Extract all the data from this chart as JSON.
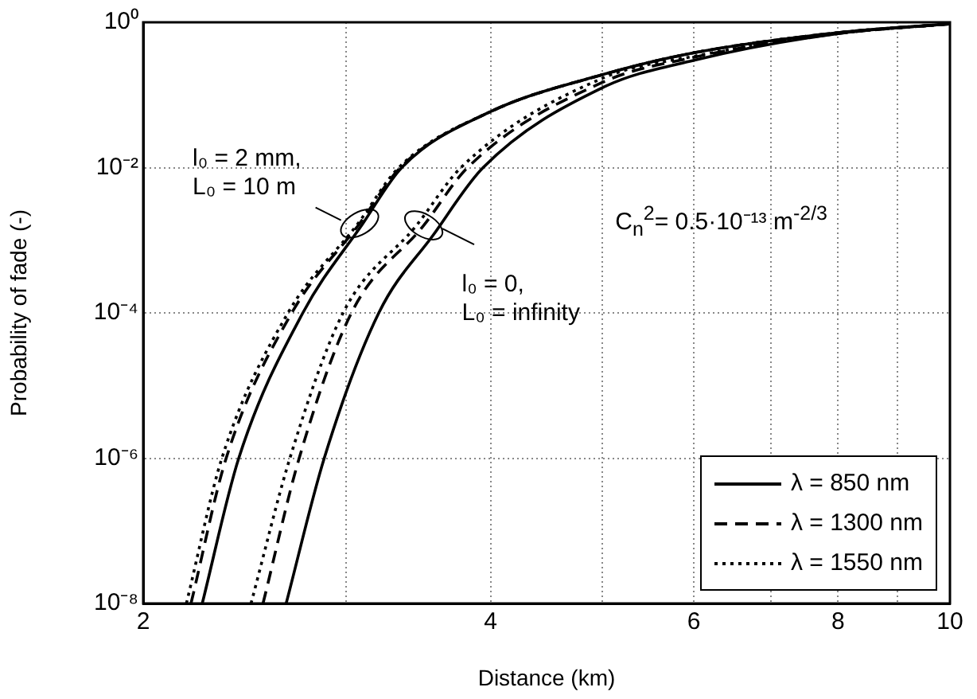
{
  "chart_data": {
    "type": "line",
    "xlabel": "Distance (km)",
    "ylabel": "Probability of fade (-)",
    "log": "xy",
    "xlim": [
      2,
      10
    ],
    "ylim": [
      1e-08,
      1
    ],
    "xticks": [
      2,
      {
        "value": 3,
        "label": null
      },
      4,
      {
        "value": 5,
        "label": null
      },
      6,
      {
        "value": 7,
        "label": null
      },
      8,
      {
        "value": 9,
        "label": null
      },
      10
    ],
    "yticks": [
      {
        "value": 1e-08,
        "label": "10⁻⁸"
      },
      {
        "value": 1e-06,
        "label": "10⁻⁶"
      },
      {
        "value": 0.0001,
        "label": "10⁻⁴"
      },
      {
        "value": 0.01,
        "label": "10⁻²"
      },
      {
        "value": 1,
        "label": "10⁰"
      }
    ],
    "grid": true,
    "legend": "bottom right",
    "marker": "none",
    "annotations": [
      {
        "text": "l₀ = 2 mm,\nL₀ = 10 m",
        "x": 3.08,
        "y": 0.0017
      },
      {
        "text": "l₀ = 0,\nL₀ = infinity",
        "x": 3.5,
        "y": 0.0016
      },
      "C$_{n}$$^{2}$= 0.5·10⁻¹³ m$^{-2/3}$"
    ],
    "series": [
      {
        "name": "λ = 850 nm",
        "color": "#000000",
        "line_style": "solid",
        "x": [
          2.25,
          2.42,
          2.75,
          3.1,
          3.35,
          4,
          5,
          6,
          8,
          10
        ],
        "values": [
          1e-08,
          1e-06,
          0.0001,
          0.0017,
          0.01,
          0.059,
          0.19,
          0.38,
          0.72,
          0.95
        ]
      },
      {
        "name": "λ = 1300 nm",
        "color": "#000000",
        "line_style": "dashed",
        "x": [
          2.2,
          2.36,
          2.69,
          3.08,
          3.34,
          4,
          5,
          6,
          8,
          10
        ],
        "values": [
          1e-08,
          1e-06,
          0.0001,
          0.0017,
          0.01,
          0.059,
          0.19,
          0.38,
          0.72,
          0.95
        ]
      },
      {
        "name": "λ = 1550 nm",
        "color": "#000000",
        "line_style": "dotted",
        "x": [
          2.18,
          2.34,
          2.67,
          3.07,
          3.33,
          4,
          5,
          6,
          8,
          10
        ],
        "values": [
          1e-08,
          1e-06,
          0.0001,
          0.0017,
          0.01,
          0.059,
          0.19,
          0.38,
          0.72,
          0.95
        ]
      },
      {
        "color": "#000000",
        "line_style": "solid",
        "x": [
          2.66,
          2.87,
          3.2,
          3.57,
          3.94,
          5,
          6,
          8,
          10
        ],
        "values": [
          1e-08,
          1e-06,
          0.0001,
          0.0012,
          0.01,
          0.126,
          0.3,
          0.7,
          0.95
        ]
      },
      {
        "color": "#000000",
        "line_style": "dashed",
        "x": [
          2.54,
          2.73,
          3.03,
          3.5,
          3.82,
          5,
          6,
          8,
          10
        ],
        "values": [
          1e-08,
          1e-06,
          0.0001,
          0.0016,
          0.01,
          0.149,
          0.33,
          0.7,
          0.95
        ]
      },
      {
        "color": "#000000",
        "line_style": "dotted",
        "x": [
          2.48,
          2.68,
          2.98,
          3.45,
          3.77,
          5,
          6,
          8,
          10
        ],
        "values": [
          1e-08,
          1e-06,
          0.0001,
          0.0016,
          0.01,
          0.17,
          0.34,
          0.7,
          0.95
        ]
      }
    ]
  }
}
